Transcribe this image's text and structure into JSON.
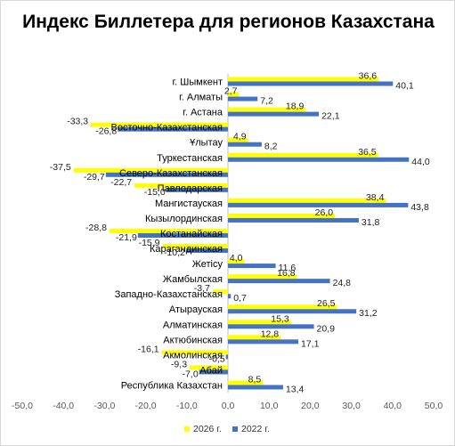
{
  "chart_data": {
    "type": "bar",
    "orientation": "horizontal",
    "title": "Индекс Биллетера для регионов Казахстана",
    "xlabel": "",
    "ylabel": "",
    "xlim": [
      -50,
      50
    ],
    "xticks": [
      -50,
      -40,
      -30,
      -20,
      -10,
      0,
      10,
      20,
      30,
      40,
      50
    ],
    "tick_labels": [
      "-50,0",
      "-40,0",
      "-30,0",
      "-20,0",
      "-10,0",
      "0,0",
      "10,0",
      "20,0",
      "30,0",
      "40,0",
      "50,0"
    ],
    "grid": false,
    "legend_position": "bottom",
    "categories": [
      "г. Шымкент",
      "г. Алматы",
      "г. Астана",
      "Восточно-Казахстанская",
      "Ұлытау",
      "Туркестанская",
      "Северо-Казахстанская",
      "Павлодарская",
      "Мангистауская",
      "Кызылординская",
      "Костанайская",
      "Карагандинская",
      "Жетісу",
      "Жамбылская",
      "Западно-Казахстанская",
      "Атырауская",
      "Алматинская",
      "Актюбинская",
      "Акмолинская",
      "Абай",
      "Республика Казахстан"
    ],
    "series": [
      {
        "name": "2026 г.",
        "color": "#ffff00",
        "values": [
          36.6,
          2.7,
          18.9,
          -33.3,
          4.9,
          36.5,
          -37.5,
          -22.7,
          38.4,
          26.0,
          -28.8,
          -15.9,
          4.0,
          16.8,
          -3.7,
          26.5,
          15.3,
          12.8,
          -16.1,
          -9.3,
          8.5
        ],
        "labels": [
          "36,6",
          "2,7",
          "18,9",
          "-33,3",
          "4,9",
          "36,5",
          "-37,5",
          "-22,7",
          "38,4",
          "26,0",
          "-28,8",
          "-15,9",
          "4,0",
          "16,8",
          "-3,7",
          "26,5",
          "15,3",
          "12,8",
          "-16,1",
          "-9,3",
          "8,5"
        ]
      },
      {
        "name": "2022 г.",
        "color": "#4472c4",
        "values": [
          40.1,
          7.2,
          22.1,
          -26.8,
          8.2,
          44.0,
          -29.7,
          -15.0,
          43.8,
          31.8,
          -21.9,
          -10.2,
          11.6,
          24.8,
          0.7,
          31.2,
          20.9,
          17.1,
          -0.5,
          -7.0,
          13.4
        ],
        "labels": [
          "40,1",
          "7,2",
          "22,1",
          "-26,8",
          "8,2",
          "44,0",
          "-29,7",
          "-15,0",
          "43,8",
          "31,8",
          "-21,9",
          "-10,2",
          "11,6",
          "24,8",
          "0,7",
          "31,2",
          "20,9",
          "17,1",
          "-0,5",
          "-7,0",
          "13,4"
        ]
      }
    ]
  }
}
